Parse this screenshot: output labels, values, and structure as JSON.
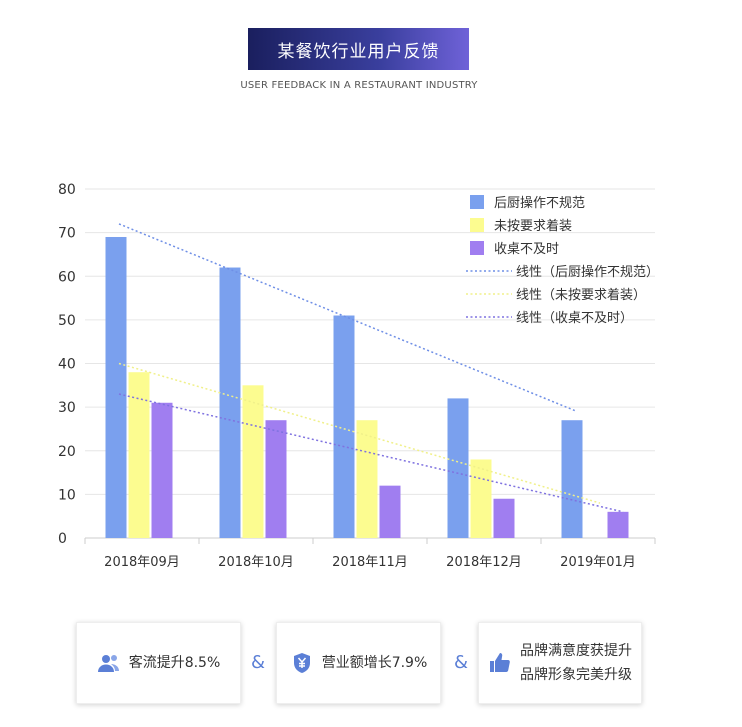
{
  "header": {
    "title": "某餐饮行业用户反馈",
    "subtitle": "USER FEEDBACK IN A RESTAURANT INDUSTRY"
  },
  "colors": {
    "series1": "#7aa0ee",
    "series2": "#fcfc90",
    "series3": "#a07ef0",
    "trend1": "#6f8fe6",
    "trend2": "#f0f08a",
    "trend3": "#7f72e0",
    "accent": "#5b7fd6"
  },
  "chart_data": {
    "type": "bar",
    "categories": [
      "2018年09月",
      "2018年10月",
      "2018年11月",
      "2018年12月",
      "2019年01月"
    ],
    "series": [
      {
        "name": "后厨操作不规范",
        "values": [
          69,
          62,
          51,
          32,
          27
        ]
      },
      {
        "name": "未按要求着装",
        "values": [
          38,
          35,
          27,
          18,
          0
        ]
      },
      {
        "name": "收桌不及时",
        "values": [
          31,
          27,
          12,
          9,
          6
        ]
      }
    ],
    "trendlines": [
      {
        "name": "线性（后厨操作不规范）",
        "start": 72,
        "end": 29
      },
      {
        "name": "线性（未按要求着装）",
        "start": 40,
        "end": 8
      },
      {
        "name": "线性（收桌不及时）",
        "start": 33,
        "end": 6
      }
    ],
    "ylim": [
      0,
      80
    ],
    "yticks": [
      0,
      10,
      20,
      30,
      40,
      50,
      60,
      70,
      80
    ],
    "legend_position": "top-right",
    "grid": true
  },
  "cards": [
    {
      "line1": "客流提升8.5%",
      "icon": "users-icon"
    },
    {
      "line1": "营业额增长7.9%",
      "icon": "money-shield-icon"
    },
    {
      "line1": "品牌满意度获提升",
      "line2": "品牌形象完美升级",
      "icon": "thumbs-up-icon"
    }
  ],
  "separators": [
    "&",
    "&"
  ]
}
